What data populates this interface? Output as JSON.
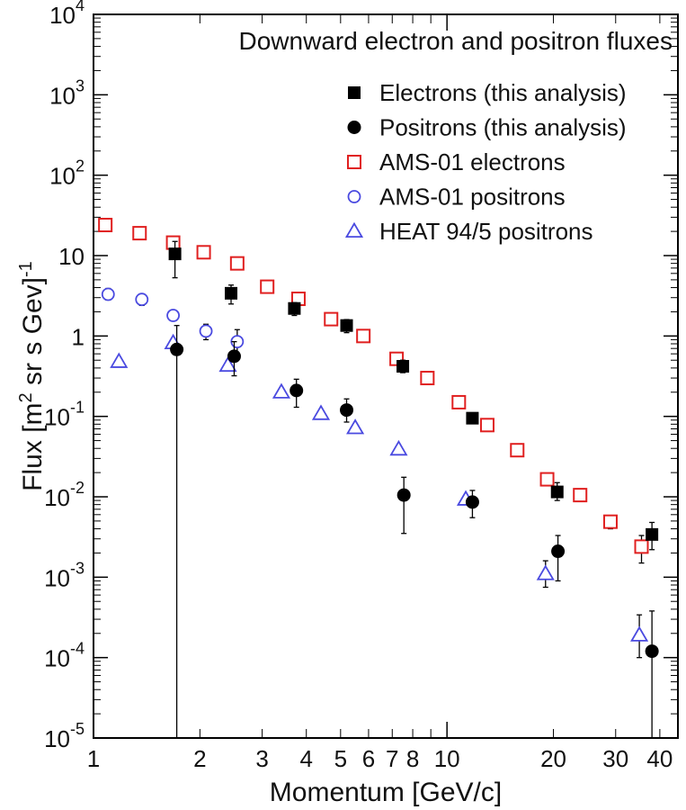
{
  "chart_data": {
    "type": "scatter",
    "title": "Downward electron and positron fluxes",
    "xlabel": "Momentum [GeV/c]",
    "ylabel": {
      "parts": [
        {
          "text": "Flux [m",
          "shift": "base"
        },
        {
          "text": "2",
          "shift": "sup"
        },
        {
          "text": " sr s Gev]",
          "shift": "base"
        },
        {
          "text": "-1",
          "shift": "sup"
        }
      ]
    },
    "xscale": "log",
    "yscale": "log",
    "xlim": [
      1,
      45
    ],
    "ylim": [
      1e-05,
      10000
    ],
    "x_ticks": [
      {
        "value": 1,
        "label": "1"
      },
      {
        "value": 2,
        "label": "2"
      },
      {
        "value": 3,
        "label": "3"
      },
      {
        "value": 4,
        "label": "4"
      },
      {
        "value": 5,
        "label": "5"
      },
      {
        "value": 6,
        "label": "6"
      },
      {
        "value": 7,
        "label": "7"
      },
      {
        "value": 8,
        "label": "8"
      },
      {
        "value": 10,
        "label": "10"
      },
      {
        "value": 20,
        "label": "20"
      },
      {
        "value": 30,
        "label": "30"
      },
      {
        "value": 40,
        "label": "40"
      }
    ],
    "y_ticks": [
      {
        "value": 1e-05,
        "base": "10",
        "exp": "-5"
      },
      {
        "value": 0.0001,
        "base": "10",
        "exp": "-4"
      },
      {
        "value": 0.001,
        "base": "10",
        "exp": "-3"
      },
      {
        "value": 0.01,
        "base": "10",
        "exp": "-2"
      },
      {
        "value": 0.1,
        "base": "10",
        "exp": "-1"
      },
      {
        "value": 1,
        "base": "1",
        "exp": ""
      },
      {
        "value": 10,
        "base": "10",
        "exp": ""
      },
      {
        "value": 100,
        "base": "10",
        "exp": "2"
      },
      {
        "value": 1000,
        "base": "10",
        "exp": "3"
      },
      {
        "value": 10000,
        "base": "10",
        "exp": "4"
      }
    ],
    "series": [
      {
        "name": "Electrons (this analysis)",
        "marker": "square-filled",
        "color": "#000000",
        "points": [
          {
            "x": 1.7,
            "y": 10.5,
            "ylo": 5.3,
            "yhi": 15.0
          },
          {
            "x": 2.45,
            "y": 3.4,
            "ylo": 2.5,
            "yhi": 4.3
          },
          {
            "x": 3.7,
            "y": 2.2,
            "ylo": 1.8,
            "yhi": 2.6
          },
          {
            "x": 5.2,
            "y": 1.35,
            "ylo": 1.1,
            "yhi": 1.6
          },
          {
            "x": 7.5,
            "y": 0.42,
            "ylo": 0.35,
            "yhi": 0.5
          },
          {
            "x": 11.8,
            "y": 0.095,
            "ylo": 0.085,
            "yhi": 0.11
          },
          {
            "x": 20.5,
            "y": 0.0115,
            "ylo": 0.009,
            "yhi": 0.015
          },
          {
            "x": 38.0,
            "y": 0.0034,
            "ylo": 0.0022,
            "yhi": 0.0048
          }
        ]
      },
      {
        "name": "Positrons (this analysis)",
        "marker": "circle-filled",
        "color": "#000000",
        "points": [
          {
            "x": 1.72,
            "y": 0.68,
            "ylo": 1e-05,
            "yhi": 1.35
          },
          {
            "x": 2.5,
            "y": 0.56,
            "ylo": 0.32,
            "yhi": 0.85
          },
          {
            "x": 3.75,
            "y": 0.21,
            "ylo": 0.13,
            "yhi": 0.29
          },
          {
            "x": 5.2,
            "y": 0.12,
            "ylo": 0.085,
            "yhi": 0.165
          },
          {
            "x": 7.55,
            "y": 0.0105,
            "ylo": 0.0035,
            "yhi": 0.0175
          },
          {
            "x": 11.8,
            "y": 0.0086,
            "ylo": 0.0055,
            "yhi": 0.012
          },
          {
            "x": 20.6,
            "y": 0.0021,
            "ylo": 0.0009,
            "yhi": 0.0033
          },
          {
            "x": 38.0,
            "y": 0.00012,
            "ylo": 1e-05,
            "yhi": 0.00038
          }
        ]
      },
      {
        "name": "AMS-01 electrons",
        "marker": "square-open",
        "color": "#e02020",
        "points": [
          {
            "x": 1.08,
            "y": 24.0
          },
          {
            "x": 1.35,
            "y": 19.0
          },
          {
            "x": 1.68,
            "y": 14.5
          },
          {
            "x": 2.05,
            "y": 11.0
          },
          {
            "x": 2.55,
            "y": 8.0
          },
          {
            "x": 3.1,
            "y": 4.1
          },
          {
            "x": 3.8,
            "y": 2.9
          },
          {
            "x": 4.7,
            "y": 1.62
          },
          {
            "x": 5.8,
            "y": 1.0
          },
          {
            "x": 7.2,
            "y": 0.52
          },
          {
            "x": 8.8,
            "y": 0.3
          },
          {
            "x": 10.8,
            "y": 0.15
          },
          {
            "x": 13.0,
            "y": 0.078
          },
          {
            "x": 15.8,
            "y": 0.038
          },
          {
            "x": 19.2,
            "y": 0.0165,
            "ylo": 0.015,
            "yhi": 0.018
          },
          {
            "x": 23.8,
            "y": 0.0105,
            "ylo": 0.0095,
            "yhi": 0.0115
          },
          {
            "x": 29.0,
            "y": 0.0049,
            "ylo": 0.004,
            "yhi": 0.0058
          },
          {
            "x": 35.5,
            "y": 0.0024,
            "ylo": 0.0015,
            "yhi": 0.0033
          }
        ]
      },
      {
        "name": "AMS-01 positrons",
        "marker": "circle-open",
        "color": "#4a4ae0",
        "points": [
          {
            "x": 1.1,
            "y": 3.3,
            "ylo": 2.8,
            "yhi": 3.9
          },
          {
            "x": 1.37,
            "y": 2.85,
            "ylo": 2.4,
            "yhi": 3.3
          },
          {
            "x": 1.68,
            "y": 1.8
          },
          {
            "x": 2.08,
            "y": 1.15,
            "ylo": 0.9,
            "yhi": 1.4
          },
          {
            "x": 2.55,
            "y": 0.85,
            "ylo": 0.6,
            "yhi": 1.2
          }
        ]
      },
      {
        "name": "HEAT 94/5 positrons",
        "marker": "triangle-open",
        "color": "#4a4ae0",
        "points": [
          {
            "x": 1.18,
            "y": 0.48
          },
          {
            "x": 1.68,
            "y": 0.82
          },
          {
            "x": 2.4,
            "y": 0.43,
            "ylo": 0.37,
            "yhi": 0.49
          },
          {
            "x": 3.4,
            "y": 0.2
          },
          {
            "x": 4.4,
            "y": 0.108,
            "ylo": 0.098,
            "yhi": 0.118
          },
          {
            "x": 5.5,
            "y": 0.072
          },
          {
            "x": 7.3,
            "y": 0.039
          },
          {
            "x": 11.3,
            "y": 0.0093
          },
          {
            "x": 19.0,
            "y": 0.0011,
            "ylo": 0.00075,
            "yhi": 0.0016
          },
          {
            "x": 35.0,
            "y": 0.00019,
            "ylo": 0.0001,
            "yhi": 0.00034
          }
        ]
      }
    ],
    "legend": {
      "position": "top-right",
      "entries": [
        {
          "label": "Electrons (this analysis)",
          "marker": "square-filled",
          "color": "#000000"
        },
        {
          "label": "Positrons (this analysis)",
          "marker": "circle-filled",
          "color": "#000000"
        },
        {
          "label": "AMS-01 electrons",
          "marker": "square-open",
          "color": "#e02020"
        },
        {
          "label": "AMS-01 positrons",
          "marker": "circle-open",
          "color": "#4a4ae0"
        },
        {
          "label": "HEAT 94/5 positrons",
          "marker": "triangle-open",
          "color": "#4a4ae0"
        }
      ]
    }
  }
}
